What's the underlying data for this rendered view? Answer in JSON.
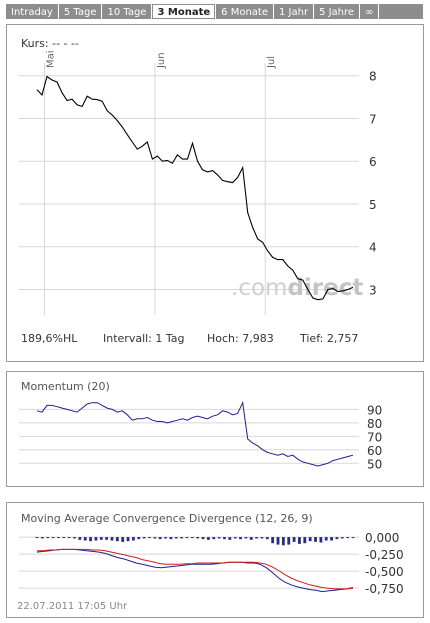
{
  "tabs": [
    {
      "label": "Intraday",
      "active": false
    },
    {
      "label": "5 Tage",
      "active": false
    },
    {
      "label": "10 Tage",
      "active": false
    },
    {
      "label": "3 Monate",
      "active": true
    },
    {
      "label": "6 Monate",
      "active": false
    },
    {
      "label": "1 Jahr",
      "active": false
    },
    {
      "label": "5 Jahre",
      "active": false
    },
    {
      "label": "∞",
      "active": false
    }
  ],
  "main": {
    "kurs_label": "Kurs: -- - --",
    "watermark_prefix": ".com",
    "watermark_suffix": "direct",
    "footer": {
      "hl": "189,6%HL",
      "intervall": "Intervall: 1 Tag",
      "hoch": "Hoch:  7,983",
      "tief": "Tief:  2,757"
    }
  },
  "momentum": {
    "title": "Momentum (20)"
  },
  "macd": {
    "title": "Moving Average Convergence Divergence (12, 26, 9)",
    "timestamp": "22.07.2011 17:05 Uhr"
  },
  "colors": {
    "price": "#000000",
    "momentum": "#1f1f8f",
    "macd": "#1f1f8f",
    "signal": "#cc1f1f",
    "hist": "#2a2a80",
    "grid": "#d8d8d8"
  },
  "chart_data": [
    {
      "type": "line",
      "title": "",
      "xlabel": "",
      "ylabel": "",
      "month_labels": [
        {
          "label": "Mai",
          "pos": 1.5
        },
        {
          "label": "Jun",
          "pos": 23.5
        },
        {
          "label": "Jul",
          "pos": 45.5
        }
      ],
      "yticks": [
        8,
        7,
        6,
        5,
        4,
        3
      ],
      "ylim": [
        2.45,
        8.25
      ],
      "x": [
        0,
        1,
        2,
        3,
        4,
        5,
        6,
        7,
        8,
        9,
        10,
        11,
        12,
        13,
        14,
        15,
        16,
        17,
        18,
        19,
        20,
        21,
        22,
        23,
        24,
        25,
        26,
        27,
        28,
        29,
        30,
        31,
        32,
        33,
        34,
        35,
        36,
        37,
        38,
        39,
        40,
        41,
        42,
        43,
        44,
        45,
        46,
        47,
        48,
        49,
        50,
        51,
        52,
        53,
        54,
        55,
        56,
        57,
        58,
        59,
        60,
        61,
        62,
        63
      ],
      "values": [
        7.67,
        7.55,
        7.98,
        7.9,
        7.85,
        7.6,
        7.42,
        7.45,
        7.32,
        7.28,
        7.52,
        7.45,
        7.44,
        7.4,
        7.18,
        7.08,
        6.95,
        6.8,
        6.62,
        6.45,
        6.28,
        6.35,
        6.45,
        6.05,
        6.12,
        6.0,
        6.02,
        5.95,
        6.15,
        6.05,
        6.05,
        6.42,
        6.0,
        5.8,
        5.75,
        5.78,
        5.68,
        5.55,
        5.52,
        5.5,
        5.62,
        5.85,
        4.8,
        4.45,
        4.18,
        4.1,
        3.9,
        3.75,
        3.7,
        3.7,
        3.55,
        3.45,
        3.25,
        3.22,
        3.0,
        2.8,
        2.76,
        2.78,
        3.0,
        3.02,
        2.95,
        2.97,
        3.0,
        3.05
      ]
    },
    {
      "type": "line",
      "title": "Momentum (20)",
      "yticks": [
        90,
        80,
        70,
        60,
        50
      ],
      "ylim": [
        45,
        97
      ],
      "values": [
        89,
        88,
        93,
        93,
        92,
        91,
        90,
        89,
        88,
        91,
        94,
        95,
        95,
        93,
        91,
        90,
        88,
        89,
        86,
        82,
        83,
        83,
        84,
        82,
        81,
        81,
        80,
        81,
        82,
        83,
        82,
        84,
        85,
        84,
        83,
        85,
        86,
        89,
        88,
        86,
        87,
        95,
        68,
        65,
        63,
        60,
        58,
        57,
        56,
        57,
        55,
        56,
        53,
        51,
        50,
        49,
        48,
        49,
        50,
        52,
        53,
        54,
        55,
        56
      ]
    },
    {
      "type": "line",
      "title": "Moving Average Convergence Divergence (12, 26, 9)",
      "yticks": [
        0.0,
        -0.25,
        -0.5,
        -0.75
      ],
      "ylim": [
        -0.85,
        0.06
      ],
      "series": [
        {
          "values": [
            -0.22,
            -0.21,
            -0.2,
            -0.19,
            -0.18,
            -0.18,
            -0.18,
            -0.19,
            -0.2,
            -0.21,
            -0.22,
            -0.24,
            -0.27,
            -0.3,
            -0.32,
            -0.35,
            -0.38,
            -0.4,
            -0.42,
            -0.44,
            -0.45,
            -0.44,
            -0.43,
            -0.42,
            -0.41,
            -0.4,
            -0.4,
            -0.4,
            -0.4,
            -0.39,
            -0.38,
            -0.37,
            -0.37,
            -0.37,
            -0.38,
            -0.38,
            -0.4,
            -0.45,
            -0.52,
            -0.6,
            -0.66,
            -0.7,
            -0.73,
            -0.75,
            -0.77,
            -0.78,
            -0.8,
            -0.79,
            -0.78,
            -0.77,
            -0.76,
            -0.74
          ]
        },
        {
          "values": [
            -0.2,
            -0.2,
            -0.19,
            -0.19,
            -0.18,
            -0.18,
            -0.18,
            -0.18,
            -0.18,
            -0.19,
            -0.19,
            -0.2,
            -0.22,
            -0.24,
            -0.26,
            -0.28,
            -0.3,
            -0.33,
            -0.35,
            -0.37,
            -0.39,
            -0.4,
            -0.4,
            -0.4,
            -0.39,
            -0.39,
            -0.38,
            -0.38,
            -0.38,
            -0.38,
            -0.38,
            -0.37,
            -0.37,
            -0.37,
            -0.37,
            -0.37,
            -0.38,
            -0.4,
            -0.44,
            -0.49,
            -0.55,
            -0.6,
            -0.64,
            -0.67,
            -0.7,
            -0.72,
            -0.74,
            -0.75,
            -0.76,
            -0.76,
            -0.76,
            -0.75
          ]
        }
      ],
      "histogram": [
        -0.01,
        -0.02,
        -0.01,
        0.0,
        0.0,
        -0.01,
        -0.01,
        -0.02,
        -0.04,
        -0.05,
        -0.06,
        -0.05,
        -0.04,
        -0.04,
        -0.05,
        -0.06,
        -0.07,
        -0.06,
        -0.05,
        -0.03,
        -0.02,
        -0.01,
        -0.02,
        -0.03,
        -0.02,
        -0.03,
        -0.02,
        -0.02,
        -0.01,
        -0.01,
        -0.02,
        -0.03,
        -0.04,
        -0.03,
        -0.02,
        -0.03,
        -0.04,
        -0.02,
        -0.03,
        -0.02,
        -0.04,
        -0.02,
        -0.02,
        -0.03,
        -0.09,
        -0.11,
        -0.12,
        -0.11,
        -0.07,
        -0.1,
        -0.09,
        -0.06,
        -0.07,
        -0.08,
        -0.05,
        -0.05,
        -0.03,
        -0.02,
        -0.01,
        -0.01
      ]
    }
  ]
}
